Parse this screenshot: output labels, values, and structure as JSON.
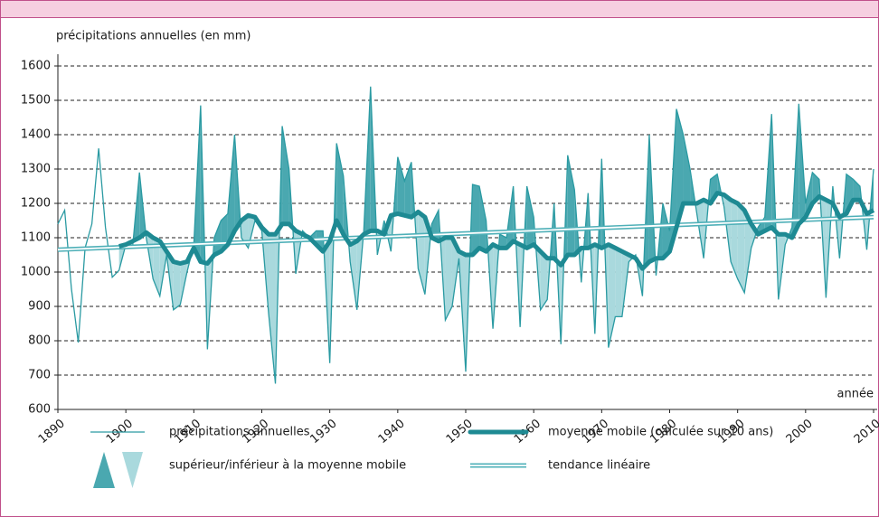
{
  "chart_data": {
    "type": "line",
    "y_label": "précipitations annuelles (en mm)",
    "x_label": "année",
    "x": [
      1890,
      1891,
      1892,
      1893,
      1894,
      1895,
      1896,
      1897,
      1898,
      1899,
      1900,
      1901,
      1902,
      1903,
      1904,
      1905,
      1906,
      1907,
      1908,
      1909,
      1910,
      1911,
      1912,
      1913,
      1914,
      1915,
      1916,
      1917,
      1918,
      1919,
      1920,
      1921,
      1922,
      1923,
      1924,
      1925,
      1926,
      1927,
      1928,
      1929,
      1930,
      1931,
      1932,
      1933,
      1934,
      1935,
      1936,
      1937,
      1938,
      1939,
      1940,
      1941,
      1942,
      1943,
      1944,
      1945,
      1946,
      1947,
      1948,
      1949,
      1950,
      1951,
      1952,
      1953,
      1954,
      1955,
      1956,
      1957,
      1958,
      1959,
      1960,
      1961,
      1962,
      1963,
      1964,
      1965,
      1966,
      1967,
      1968,
      1969,
      1970,
      1971,
      1972,
      1973,
      1974,
      1975,
      1976,
      1977,
      1978,
      1979,
      1980,
      1981,
      1982,
      1983,
      1984,
      1985,
      1986,
      1987,
      1988,
      1989,
      1990,
      1991,
      1992,
      1993,
      1994,
      1995,
      1996,
      1997,
      1998,
      1999,
      2000,
      2001,
      2002,
      2003,
      2004,
      2005,
      2006,
      2007,
      2008,
      2009,
      2010
    ],
    "series": [
      {
        "name": "précipitations annuelles",
        "color": "#2a9aa2",
        "values": [
          1140,
          1180,
          950,
          795,
          1070,
          1140,
          1360,
          1130,
          985,
          1005,
          1080,
          1075,
          1290,
          1100,
          980,
          930,
          1050,
          890,
          905,
          1000,
          1080,
          1485,
          775,
          1100,
          1150,
          1170,
          1400,
          1100,
          1070,
          1150,
          1120,
          880,
          675,
          1425,
          1300,
          995,
          1120,
          1100,
          1120,
          1120,
          735,
          1375,
          1280,
          1030,
          890,
          1120,
          1540,
          1050,
          1150,
          1060,
          1335,
          1265,
          1320,
          1010,
          935,
          1140,
          1180,
          860,
          900,
          1040,
          710,
          1255,
          1250,
          1150,
          835,
          1110,
          1100,
          1250,
          840,
          1250,
          1160,
          890,
          920,
          1200,
          790,
          1340,
          1240,
          970,
          1230,
          820,
          1330,
          780,
          870,
          870,
          1030,
          1050,
          930,
          1400,
          990,
          1200,
          1120,
          1475,
          1400,
          1300,
          1170,
          1040,
          1270,
          1285,
          1190,
          1030,
          980,
          940,
          1070,
          1130,
          1160,
          1460,
          920,
          1080,
          1130,
          1490,
          1200,
          1290,
          1270,
          925,
          1250,
          1040,
          1285,
          1270,
          1250,
          1065,
          1300
        ]
      },
      {
        "name": "moyenne mobile (calculée sur 10 ans)",
        "color": "#1e8a93",
        "values": [
          null,
          null,
          null,
          null,
          null,
          null,
          null,
          null,
          null,
          1075,
          1080,
          1090,
          1100,
          1115,
          1100,
          1090,
          1060,
          1030,
          1025,
          1030,
          1070,
          1030,
          1025,
          1050,
          1060,
          1080,
          1120,
          1150,
          1165,
          1160,
          1130,
          1110,
          1110,
          1140,
          1140,
          1120,
          1110,
          1100,
          1080,
          1060,
          1090,
          1150,
          1110,
          1080,
          1090,
          1110,
          1120,
          1120,
          1110,
          1165,
          1170,
          1165,
          1160,
          1175,
          1160,
          1100,
          1090,
          1100,
          1100,
          1060,
          1050,
          1050,
          1070,
          1060,
          1080,
          1070,
          1070,
          1090,
          1080,
          1070,
          1080,
          1060,
          1040,
          1040,
          1020,
          1050,
          1050,
          1070,
          1070,
          1080,
          1070,
          1080,
          1070,
          1060,
          1050,
          1040,
          1010,
          1030,
          1040,
          1040,
          1060,
          1130,
          1200,
          1200,
          1200,
          1210,
          1200,
          1230,
          1225,
          1210,
          1200,
          1180,
          1140,
          1110,
          1120,
          1130,
          1110,
          1110,
          1100,
          1140,
          1160,
          1200,
          1220,
          1210,
          1200,
          1160,
          1170,
          1210,
          1210,
          1170,
          1180
        ]
      },
      {
        "name": "tendance linéaire",
        "color": "#4fb0b8",
        "x": [
          1890,
          2010
        ],
        "values": [
          1065,
          1160
        ]
      }
    ],
    "fill_legend": {
      "label": "supérieur/inférieur à la moyenne mobile",
      "above_color": "#4aa8b0",
      "below_color": "#a9d9dd"
    },
    "xlim": [
      1890,
      2010
    ],
    "xticks": [
      1890,
      1900,
      1910,
      1920,
      1930,
      1940,
      1950,
      1960,
      1970,
      1980,
      1990,
      2000,
      2010
    ],
    "ylim": [
      600,
      1600
    ],
    "yticks": [
      600,
      700,
      800,
      900,
      1000,
      1100,
      1200,
      1300,
      1400,
      1500,
      1600
    ],
    "grid": true
  }
}
